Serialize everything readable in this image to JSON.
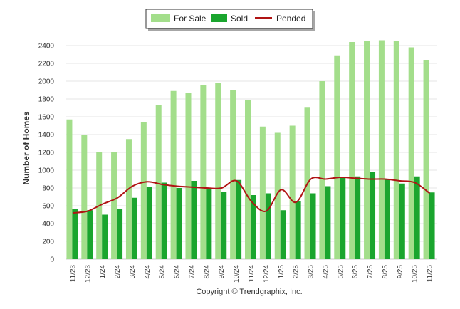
{
  "chart_data": {
    "type": "bar",
    "title": "",
    "xlabel": "",
    "ylabel": "Number of Homes",
    "ylim": [
      0,
      2400
    ],
    "yticks": [
      0,
      200,
      400,
      600,
      800,
      1000,
      1200,
      1400,
      1600,
      1800,
      2000,
      2200,
      2400
    ],
    "grid": true,
    "legend_position": "top-center",
    "categories": [
      "11/23",
      "12/23",
      "1/24",
      "2/24",
      "3/24",
      "4/24",
      "5/24",
      "6/24",
      "7/24",
      "8/24",
      "9/24",
      "10/24",
      "11/24",
      "12/24",
      "1/25",
      "2/25",
      "3/25",
      "4/25",
      "5/25",
      "6/25",
      "7/25",
      "8/25",
      "9/25",
      "10/25",
      "11/25"
    ],
    "series": [
      {
        "name": "For Sale",
        "kind": "bar",
        "color": "#a3de8b",
        "values": [
          1570,
          1400,
          1200,
          1200,
          1350,
          1540,
          1730,
          1890,
          1870,
          1960,
          1980,
          1900,
          1790,
          1490,
          1420,
          1500,
          1710,
          2000,
          2290,
          2440,
          2450,
          2460,
          2450,
          2380,
          2240
        ]
      },
      {
        "name": "Sold",
        "kind": "bar",
        "color": "#1aa52e",
        "values": [
          560,
          550,
          500,
          560,
          690,
          810,
          860,
          800,
          880,
          800,
          760,
          890,
          720,
          740,
          550,
          650,
          740,
          820,
          920,
          930,
          980,
          900,
          850,
          930,
          750
        ]
      },
      {
        "name": "Pended",
        "kind": "line",
        "color": "#b01414",
        "values": [
          520,
          540,
          620,
          690,
          820,
          870,
          840,
          820,
          810,
          800,
          800,
          880,
          650,
          540,
          780,
          640,
          900,
          900,
          920,
          910,
          900,
          900,
          880,
          860,
          740
        ]
      }
    ],
    "footer": "Copyright © Trendgraphix, Inc."
  }
}
